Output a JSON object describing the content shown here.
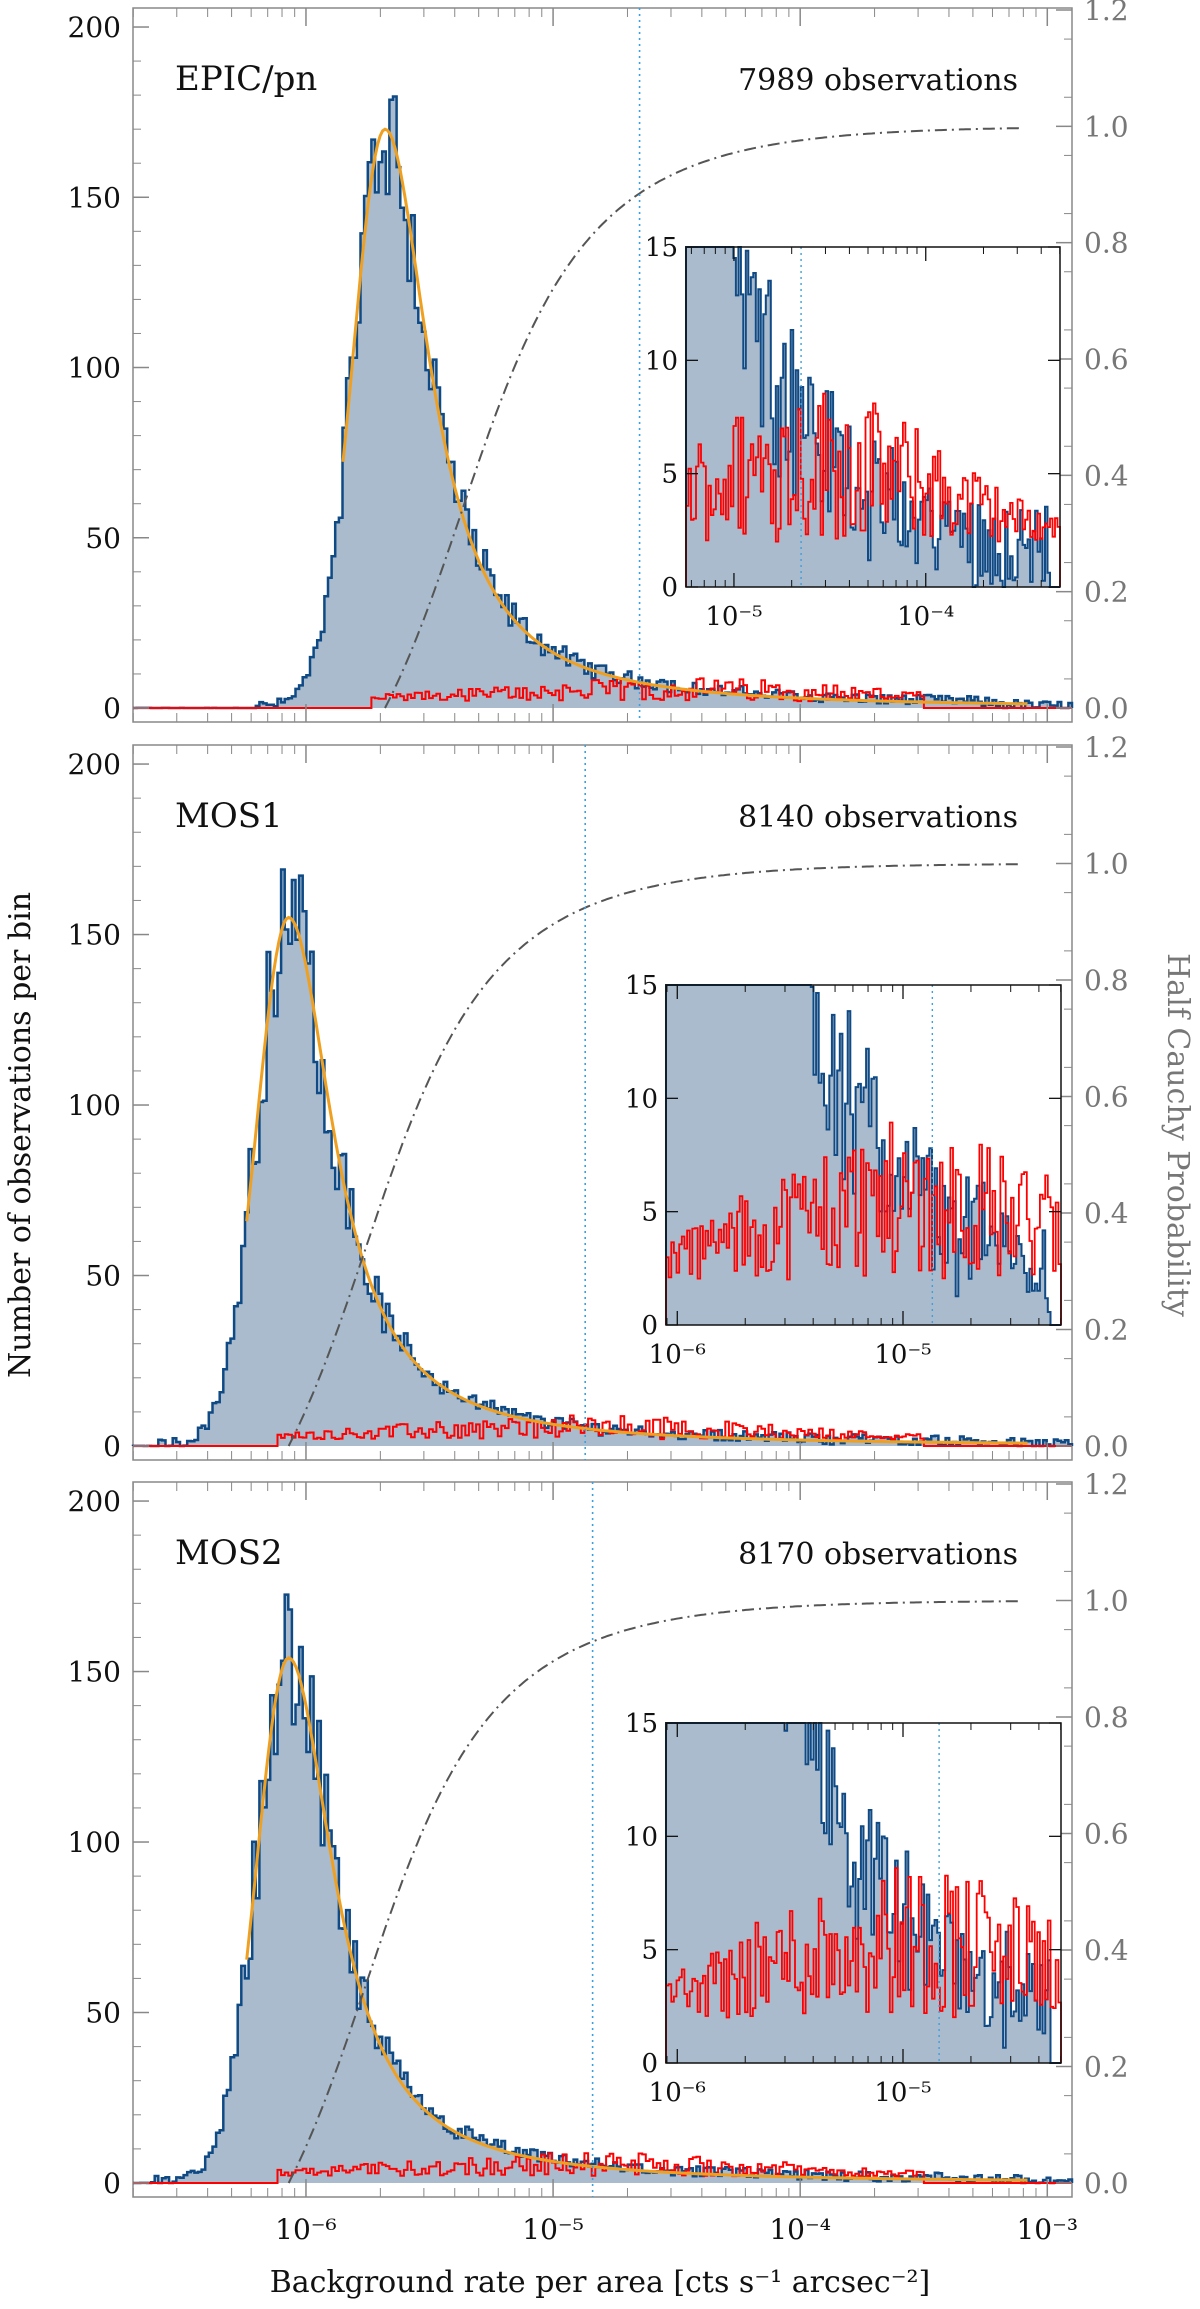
{
  "figure": {
    "ylabel_left": "Number of observations per bin",
    "ylabel_right": "Half Cauchy Probability",
    "xlabel": "Background rate per area [cts s⁻¹ arcsec⁻²]",
    "x_ticks": [
      "10⁻⁶",
      "10⁻⁵",
      "10⁻⁴",
      "10⁻³"
    ],
    "y_ticks_left": [
      "0",
      "50",
      "100",
      "150",
      "200"
    ],
    "y_ticks_right": [
      "0.0",
      "0.2",
      "0.4",
      "0.6",
      "0.8",
      "1.0",
      "1.2"
    ],
    "colors": {
      "hist_fill": "#a9bbcc",
      "hist_line": "#0f4a85",
      "red_hist": "#ff0000",
      "fit": "#f0a020",
      "cdf": "#555555",
      "threshold": "#3aa0e0"
    }
  },
  "chart_data": [
    {
      "type": "bar",
      "panel": "EPIC/pn",
      "label": "EPIC/pn",
      "n_label": "7989 observations",
      "xlim_log10": [
        -6.7,
        -2.9
      ],
      "ylim": [
        0,
        205
      ],
      "y2lim": [
        0,
        1.2
      ],
      "peak_log10": -5.68,
      "peak_count": 170,
      "threshold_log10": -4.65,
      "inset": {
        "xlim_log10": [
          -5.25,
          -3.3
        ],
        "ylim": [
          0,
          15
        ],
        "x_ticks": [
          "10⁻⁵",
          "10⁻⁴"
        ],
        "x_tick_log10": [
          -5,
          -4
        ],
        "y_ticks": [
          "0",
          "5",
          "10",
          "15"
        ]
      }
    },
    {
      "type": "bar",
      "panel": "MOS1",
      "label": "MOS1",
      "n_label": "8140 observations",
      "xlim_log10": [
        -6.7,
        -2.9
      ],
      "ylim": [
        0,
        205
      ],
      "y2lim": [
        0,
        1.2
      ],
      "peak_log10": -6.07,
      "peak_count": 155,
      "threshold_log10": -4.87,
      "inset": {
        "xlim_log10": [
          -6.05,
          -4.3
        ],
        "ylim": [
          0,
          15
        ],
        "x_ticks": [
          "10⁻⁶",
          "10⁻⁵"
        ],
        "x_tick_log10": [
          -6,
          -5
        ],
        "y_ticks": [
          "0",
          "5",
          "10",
          "15"
        ]
      }
    },
    {
      "type": "bar",
      "panel": "MOS2",
      "label": "MOS2",
      "n_label": "8170 observations",
      "xlim_log10": [
        -6.7,
        -2.9
      ],
      "ylim": [
        0,
        205
      ],
      "y2lim": [
        0,
        1.2
      ],
      "peak_log10": -6.07,
      "peak_count": 154,
      "threshold_log10": -4.84,
      "inset": {
        "xlim_log10": [
          -6.05,
          -4.3
        ],
        "ylim": [
          0,
          15
        ],
        "x_ticks": [
          "10⁻⁶",
          "10⁻⁵"
        ],
        "x_tick_log10": [
          -6,
          -5
        ],
        "y_ticks": [
          "0",
          "5",
          "10",
          "15"
        ]
      }
    }
  ]
}
